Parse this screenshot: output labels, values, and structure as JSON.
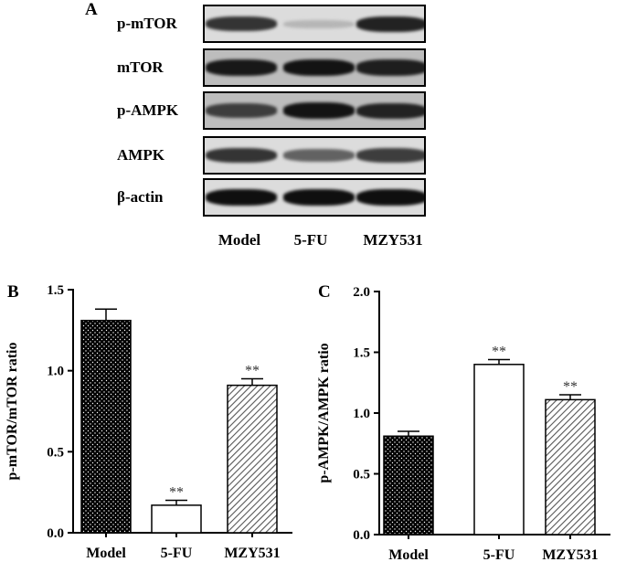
{
  "panel_a": {
    "letter": "A",
    "rows": [
      {
        "label": "p-mTOR",
        "intensity": [
          0.8,
          0.1,
          0.9
        ]
      },
      {
        "label": "mTOR",
        "intensity": [
          0.95,
          0.98,
          0.92
        ]
      },
      {
        "label": "p-AMPK",
        "intensity": [
          0.75,
          0.98,
          0.9
        ]
      },
      {
        "label": "AMPK",
        "intensity": [
          0.8,
          0.55,
          0.75
        ]
      },
      {
        "label": "β-actin",
        "intensity": [
          1.0,
          1.0,
          1.0
        ]
      }
    ],
    "lanes": [
      "Model",
      "5-FU",
      "MZY531"
    ]
  },
  "chart_data": [
    {
      "panel": "B",
      "type": "bar",
      "categories": [
        "Model",
        "5-FU",
        "MZY531"
      ],
      "values": [
        1.31,
        0.17,
        0.91
      ],
      "errors": [
        0.07,
        0.03,
        0.04
      ],
      "significance": [
        "",
        "**",
        "**"
      ],
      "patterns": [
        "dots",
        "none",
        "hatch"
      ],
      "ylabel": "p-mTOR/mTOR ratio",
      "ylim": [
        0,
        1.5
      ],
      "yticks": [
        "0.0",
        "0.5",
        "1.0",
        "1.5"
      ],
      "grid": false
    },
    {
      "panel": "C",
      "type": "bar",
      "categories": [
        "Model",
        "5-FU",
        "MZY531"
      ],
      "values": [
        0.81,
        1.4,
        1.11
      ],
      "errors": [
        0.04,
        0.04,
        0.04
      ],
      "significance": [
        "",
        "**",
        "**"
      ],
      "patterns": [
        "dots",
        "none",
        "hatch"
      ],
      "ylabel": "p-AMPK/AMPK ratio",
      "ylim": [
        0,
        2.0
      ],
      "yticks": [
        "0.0",
        "0.5",
        "1.0",
        "1.5",
        "2.0"
      ],
      "grid": false
    }
  ]
}
